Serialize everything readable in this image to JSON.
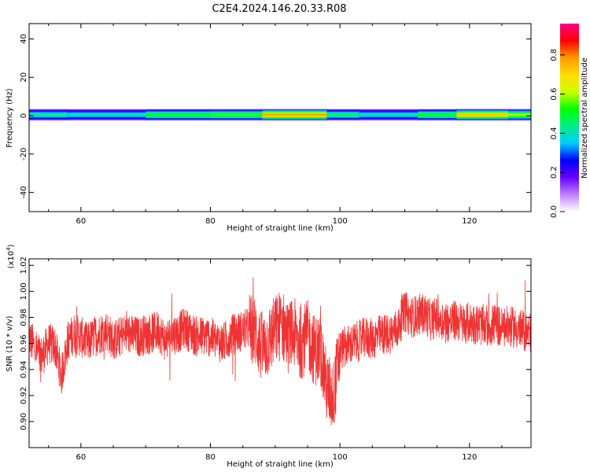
{
  "figure": {
    "title": "C2E4.2024.146.20.33.R08"
  },
  "colorbar": {
    "label": "Normalized spectral amplitude",
    "ticks": [
      "0.0",
      "0.2",
      "0.4",
      "0.6",
      "0.8"
    ],
    "tick_values": [
      0.0,
      0.2,
      0.4,
      0.6,
      0.8
    ],
    "range": [
      0,
      0.96
    ],
    "stops": [
      "#ffffff",
      "#c080ff",
      "#6600ff",
      "#0000ff",
      "#00ccff",
      "#00ee88",
      "#00ff00",
      "#ccff00",
      "#ffdd00",
      "#ff9900",
      "#ff0000",
      "#ff0088"
    ]
  },
  "chart_data": [
    {
      "type": "heatmap",
      "title": "",
      "xlabel": "Height of straight line (km)",
      "ylabel": "Frequency (Hz)",
      "xlim": [
        52,
        129.5
      ],
      "ylim": [
        -50,
        48
      ],
      "xticks": [
        "60",
        "80",
        "100",
        "120"
      ],
      "xtick_values": [
        60,
        80,
        100,
        120
      ],
      "yticks": [
        "40",
        "20",
        "0",
        "-20",
        "-40"
      ],
      "ytick_values": [
        40,
        20,
        0,
        -20,
        -40
      ],
      "band": {
        "center_hz": 0.5,
        "halfwidth_hz": 3.2,
        "segments": [
          {
            "x0": 52,
            "x1": 58,
            "amp": 0.45
          },
          {
            "x0": 58,
            "x1": 70,
            "amp": 0.42
          },
          {
            "x0": 70,
            "x1": 80,
            "amp": 0.55
          },
          {
            "x0": 80,
            "x1": 88,
            "amp": 0.58
          },
          {
            "x0": 88,
            "x1": 98,
            "amp": 0.85
          },
          {
            "x0": 98,
            "x1": 103,
            "amp": 0.5
          },
          {
            "x0": 103,
            "x1": 112,
            "amp": 0.42
          },
          {
            "x0": 112,
            "x1": 118,
            "amp": 0.55
          },
          {
            "x0": 118,
            "x1": 126,
            "amp": 0.8
          },
          {
            "x0": 126,
            "x1": 129.5,
            "amp": 0.65
          }
        ]
      }
    },
    {
      "type": "line",
      "title": "",
      "xlabel": "Height of straight line (km)",
      "ylabel": "SNR (10 * v/v)",
      "multiplier": "(x10",
      "multiplier_exp": "4",
      "multiplier_close": ")",
      "xlim": [
        52,
        129.5
      ],
      "ylim": [
        0.88,
        1.025
      ],
      "xticks": [
        "60",
        "80",
        "100",
        "120"
      ],
      "xtick_values": [
        60,
        80,
        100,
        120
      ],
      "yticks": [
        "0.90",
        "0.92",
        "0.94",
        "0.96",
        "0.98",
        "1.00",
        "1.02"
      ],
      "ytick_values": [
        0.9,
        0.92,
        0.94,
        0.96,
        0.98,
        1.0,
        1.02
      ],
      "series": [
        {
          "color": "#ee3333",
          "x": [
            52,
            53,
            54,
            55,
            56,
            57,
            58,
            59,
            60,
            61,
            62,
            63,
            64,
            65,
            66,
            67,
            68,
            69,
            70,
            71,
            72,
            73,
            74,
            75,
            76,
            77,
            78,
            79,
            80,
            81,
            82,
            83,
            84,
            85,
            86,
            87,
            88,
            89,
            90,
            91,
            92,
            93,
            94,
            95,
            96,
            97,
            98,
            99,
            100,
            101,
            102,
            103,
            104,
            105,
            106,
            107,
            108,
            109,
            110,
            111,
            112,
            113,
            114,
            115,
            116,
            117,
            118,
            119,
            120,
            121,
            122,
            123,
            124,
            125,
            126,
            127,
            128,
            129.5
          ],
          "y": [
            0.965,
            0.955,
            0.95,
            0.96,
            0.958,
            0.935,
            0.962,
            0.968,
            0.965,
            0.96,
            0.965,
            0.968,
            0.97,
            0.962,
            0.965,
            0.968,
            0.966,
            0.965,
            0.967,
            0.968,
            0.97,
            0.962,
            0.967,
            0.968,
            0.972,
            0.968,
            0.965,
            0.966,
            0.965,
            0.962,
            0.96,
            0.966,
            0.968,
            0.97,
            0.972,
            0.968,
            0.955,
            0.962,
            0.97,
            0.975,
            0.965,
            0.967,
            0.96,
            0.966,
            0.955,
            0.955,
            0.925,
            0.92,
            0.955,
            0.958,
            0.96,
            0.962,
            0.965,
            0.963,
            0.966,
            0.967,
            0.968,
            0.972,
            0.985,
            0.98,
            0.982,
            0.983,
            0.978,
            0.98,
            0.978,
            0.976,
            0.978,
            0.975,
            0.976,
            0.975,
            0.974,
            0.973,
            0.975,
            0.972,
            0.973,
            0.972,
            0.97,
            0.968
          ]
        }
      ]
    }
  ]
}
